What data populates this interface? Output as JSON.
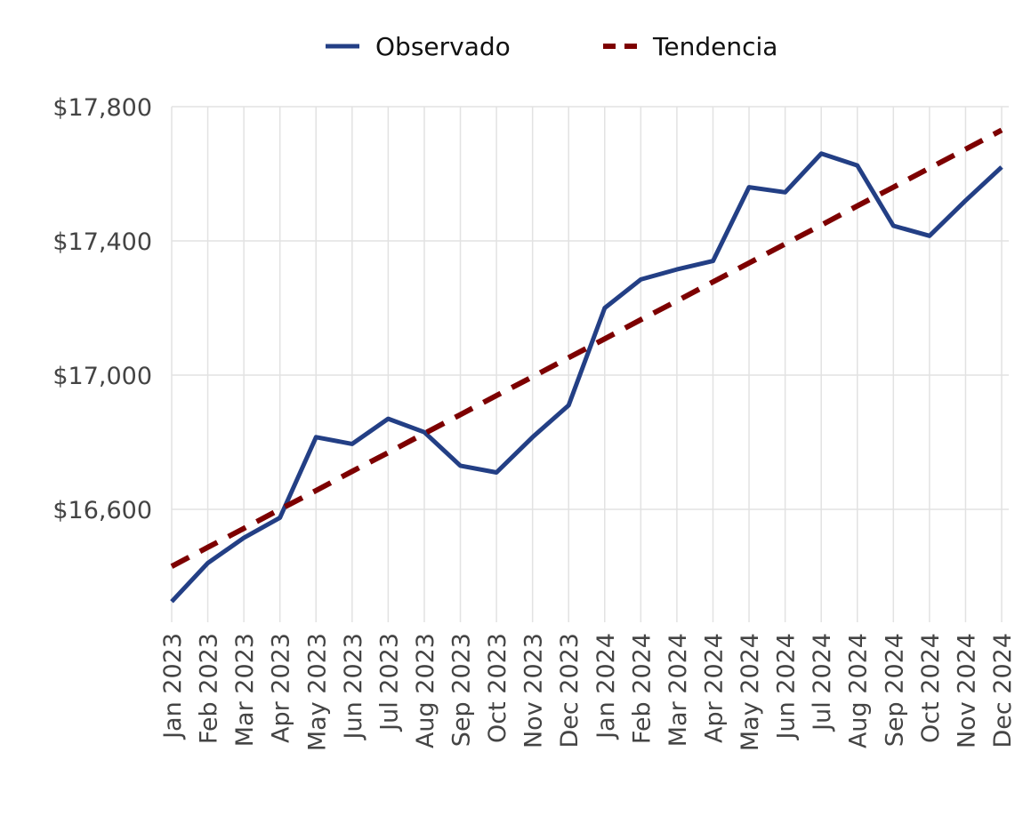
{
  "chart_data": {
    "type": "line",
    "title": "",
    "xlabel": "",
    "ylabel": "",
    "ylim": [
      16300,
      17800
    ],
    "yticks": [
      16600,
      17000,
      17400,
      17800
    ],
    "ytick_labels": [
      "$16,600",
      "$17,000",
      "$17,400",
      "$17,800"
    ],
    "grid": true,
    "legend_position": "top-center",
    "categories": [
      "Jan 2023",
      "Feb 2023",
      "Mar 2023",
      "Apr 2023",
      "May 2023",
      "Jun 2023",
      "Jul 2023",
      "Aug 2023",
      "Sep 2023",
      "Oct 2023",
      "Nov 2023",
      "Dec 2023",
      "Jan 2024",
      "Feb 2024",
      "Mar 2024",
      "Apr 2024",
      "May 2024",
      "Jun 2024",
      "Jul 2024",
      "Aug 2024",
      "Sep 2024",
      "Oct 2024",
      "Nov 2024",
      "Dec 2024"
    ],
    "series": [
      {
        "name": "Observado",
        "style": "solid",
        "color": "#233f85",
        "values": [
          16325,
          16440,
          16515,
          16575,
          16815,
          16795,
          16870,
          16830,
          16730,
          16710,
          16815,
          16910,
          17200,
          17285,
          17315,
          17340,
          17560,
          17545,
          17660,
          17625,
          17445,
          17415,
          17520,
          17620
        ]
      },
      {
        "name": "Tendencia",
        "style": "dashed",
        "color": "#7d0000",
        "values": [
          16430,
          16487,
          16543,
          16600,
          16656,
          16713,
          16769,
          16826,
          16882,
          16939,
          16995,
          17052,
          17108,
          17165,
          17221,
          17278,
          17334,
          17391,
          17447,
          17504,
          17560,
          17617,
          17673,
          17730
        ]
      }
    ]
  }
}
